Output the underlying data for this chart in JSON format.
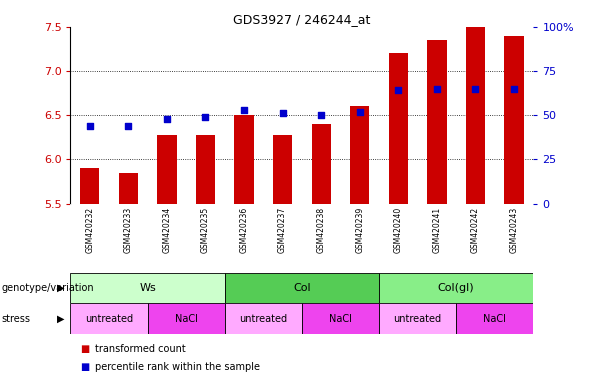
{
  "title": "GDS3927 / 246244_at",
  "samples": [
    "GSM420232",
    "GSM420233",
    "GSM420234",
    "GSM420235",
    "GSM420236",
    "GSM420237",
    "GSM420238",
    "GSM420239",
    "GSM420240",
    "GSM420241",
    "GSM420242",
    "GSM420243"
  ],
  "transformed_count": [
    5.9,
    5.85,
    6.28,
    6.28,
    6.5,
    6.28,
    6.4,
    6.6,
    7.2,
    7.35,
    7.5,
    7.4
  ],
  "percentile_rank": [
    44,
    44,
    48,
    49,
    53,
    51,
    50,
    52,
    64,
    65,
    65,
    65
  ],
  "bar_color": "#cc0000",
  "dot_color": "#0000cc",
  "ylim_left": [
    5.5,
    7.5
  ],
  "ylim_right": [
    0,
    100
  ],
  "yticks_left": [
    5.5,
    6.0,
    6.5,
    7.0,
    7.5
  ],
  "yticks_right": [
    0,
    25,
    50,
    75,
    100
  ],
  "ytick_labels_right": [
    "0",
    "25",
    "50",
    "75",
    "100%"
  ],
  "grid_values": [
    6.0,
    6.5,
    7.0
  ],
  "genotype_groups": [
    {
      "label": "Ws",
      "start": 0,
      "end": 4,
      "color": "#ccffcc"
    },
    {
      "label": "Col",
      "start": 4,
      "end": 8,
      "color": "#55cc55"
    },
    {
      "label": "Col(gl)",
      "start": 8,
      "end": 12,
      "color": "#88ee88"
    }
  ],
  "stress_groups": [
    {
      "label": "untreated",
      "start": 0,
      "end": 2,
      "color": "#ffaaff"
    },
    {
      "label": "NaCl",
      "start": 2,
      "end": 4,
      "color": "#ee44ee"
    },
    {
      "label": "untreated",
      "start": 4,
      "end": 6,
      "color": "#ffaaff"
    },
    {
      "label": "NaCl",
      "start": 6,
      "end": 8,
      "color": "#ee44ee"
    },
    {
      "label": "untreated",
      "start": 8,
      "end": 10,
      "color": "#ffaaff"
    },
    {
      "label": "NaCl",
      "start": 10,
      "end": 12,
      "color": "#ee44ee"
    }
  ],
  "legend_items": [
    {
      "color": "#cc0000",
      "label": "transformed count"
    },
    {
      "color": "#0000cc",
      "label": "percentile rank within the sample"
    }
  ],
  "bar_width": 0.5,
  "tick_label_color_left": "#cc0000",
  "tick_label_color_right": "#0000cc",
  "background_color": "#ffffff",
  "sample_bg_color": "#cccccc",
  "genotype_label": "genotype/variation",
  "stress_label": "stress"
}
